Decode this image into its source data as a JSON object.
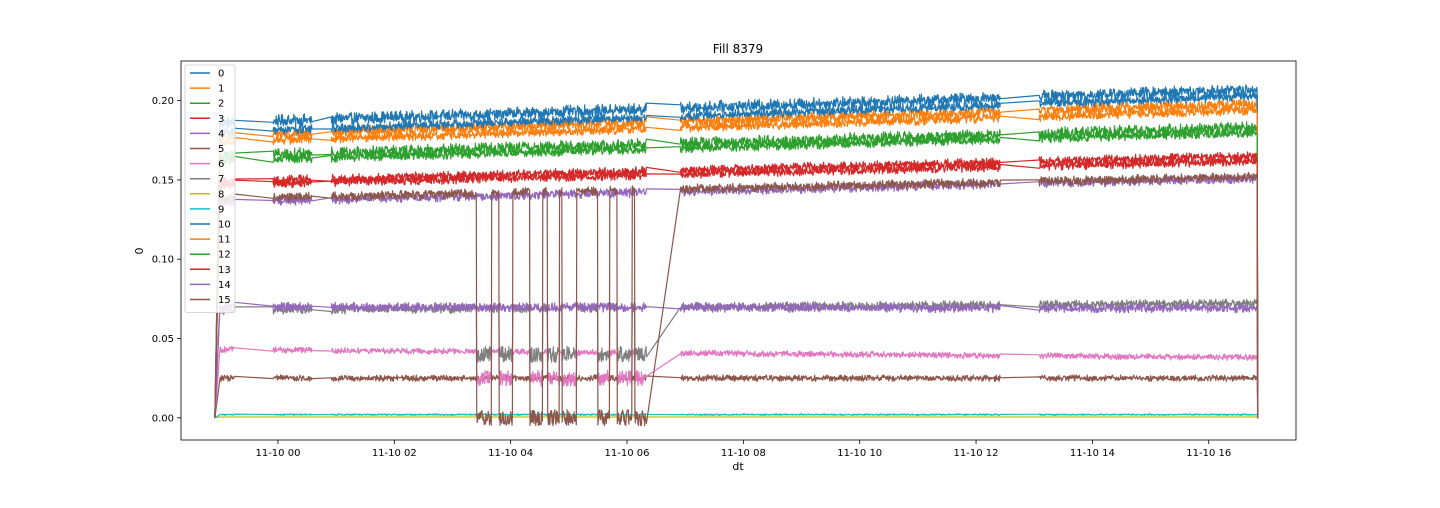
{
  "chart_data": {
    "type": "line",
    "title": "Fill 8379",
    "xlabel": "dt",
    "ylabel": "0",
    "x_range": [
      "2022-11-09T22:20",
      "2022-11-10T17:30"
    ],
    "ylim": [
      -0.014,
      0.225
    ],
    "x_ticks": [
      {
        "t": "2022-11-10T00:00",
        "label": "11-10 00"
      },
      {
        "t": "2022-11-10T02:00",
        "label": "11-10 02"
      },
      {
        "t": "2022-11-10T04:00",
        "label": "11-10 04"
      },
      {
        "t": "2022-11-10T06:00",
        "label": "11-10 06"
      },
      {
        "t": "2022-11-10T08:00",
        "label": "11-10 08"
      },
      {
        "t": "2022-11-10T10:00",
        "label": "11-10 10"
      },
      {
        "t": "2022-11-10T12:00",
        "label": "11-10 12"
      },
      {
        "t": "2022-11-10T14:00",
        "label": "11-10 14"
      },
      {
        "t": "2022-11-10T16:00",
        "label": "11-10 16"
      }
    ],
    "y_ticks": [
      {
        "v": 0.0,
        "label": "0.00"
      },
      {
        "v": 0.05,
        "label": "0.05"
      },
      {
        "v": 0.1,
        "label": "0.10"
      },
      {
        "v": 0.15,
        "label": "0.15"
      },
      {
        "v": 0.2,
        "label": "0.20"
      }
    ],
    "grid": false,
    "legend_position": "top-left",
    "data_segments": [
      [
        "2022-11-09T23:00",
        "2022-11-09T23:15"
      ],
      [
        "2022-11-09T23:55",
        "2022-11-10T00:35"
      ],
      [
        "2022-11-10T00:55",
        "2022-11-10T06:20"
      ],
      [
        "2022-11-10T06:55",
        "2022-11-10T12:25"
      ],
      [
        "2022-11-10T13:05",
        "2022-11-10T16:50"
      ]
    ],
    "dump_start": "2022-11-10T16:50",
    "injection_start": "2022-11-09T22:55",
    "dips": [
      [
        "2022-11-10T03:25",
        "2022-11-10T03:40"
      ],
      [
        "2022-11-10T03:48",
        "2022-11-10T04:02"
      ],
      [
        "2022-11-10T04:20",
        "2022-11-10T04:33"
      ],
      [
        "2022-11-10T04:38",
        "2022-11-10T04:50"
      ],
      [
        "2022-11-10T04:53",
        "2022-11-10T05:08"
      ],
      [
        "2022-11-10T05:30",
        "2022-11-10T05:42"
      ],
      [
        "2022-11-10T05:50",
        "2022-11-10T06:05"
      ],
      [
        "2022-11-10T06:08",
        "2022-11-10T06:20"
      ]
    ],
    "series": [
      {
        "name": "0",
        "color": "#1f77b4",
        "y_start": 0.186,
        "y_end": 0.207,
        "noise": 0.004,
        "dip_to": null
      },
      {
        "name": "1",
        "color": "#ff7f0e",
        "y_start": 0.178,
        "y_end": 0.198,
        "noise": 0.004,
        "dip_to": null
      },
      {
        "name": "2",
        "color": "#2ca02c",
        "y_start": 0.165,
        "y_end": 0.183,
        "noise": 0.004,
        "dip_to": null
      },
      {
        "name": "3",
        "color": "#d62728",
        "y_start": 0.149,
        "y_end": 0.165,
        "noise": 0.003,
        "dip_to": null
      },
      {
        "name": "4",
        "color": "#9467bd",
        "y_start": 0.136,
        "y_end": 0.151,
        "noise": 0.003,
        "dip_to": null
      },
      {
        "name": "5",
        "color": "#8c564b",
        "y_start": 0.025,
        "y_end": 0.025,
        "noise": 0.002,
        "dip_to": null
      },
      {
        "name": "6",
        "color": "#e377c2",
        "y_start": 0.043,
        "y_end": 0.038,
        "noise": 0.002,
        "dip_to": 0.025
      },
      {
        "name": "7",
        "color": "#7f7f7f",
        "y_start": 0.068,
        "y_end": 0.072,
        "noise": 0.003,
        "dip_to": 0.04
      },
      {
        "name": "8",
        "color": "#bcbd22",
        "y_start": 0.0005,
        "y_end": 0.0005,
        "noise": 0.0,
        "dip_to": null
      },
      {
        "name": "9",
        "color": "#17becf",
        "y_start": 0.002,
        "y_end": 0.002,
        "noise": 0.0005,
        "dip_to": null
      },
      {
        "name": "10",
        "color": "#1f77b4",
        "y_start": 0.18,
        "y_end": 0.203,
        "noise": 0.003,
        "dip_to": null
      },
      {
        "name": "11",
        "color": "#ff7f0e",
        "y_start": 0.174,
        "y_end": 0.194,
        "noise": 0.003,
        "dip_to": null
      },
      {
        "name": "12",
        "color": "#2ca02c",
        "y_start": 0.162,
        "y_end": 0.18,
        "noise": 0.003,
        "dip_to": null
      },
      {
        "name": "13",
        "color": "#d62728",
        "y_start": 0.147,
        "y_end": 0.162,
        "noise": 0.003,
        "dip_to": null
      },
      {
        "name": "14",
        "color": "#9467bd",
        "y_start": 0.07,
        "y_end": 0.069,
        "noise": 0.003,
        "dip_to": null
      },
      {
        "name": "15",
        "color": "#8c564b",
        "y_start": 0.138,
        "y_end": 0.152,
        "noise": 0.003,
        "dip_to": 0.0
      }
    ]
  }
}
